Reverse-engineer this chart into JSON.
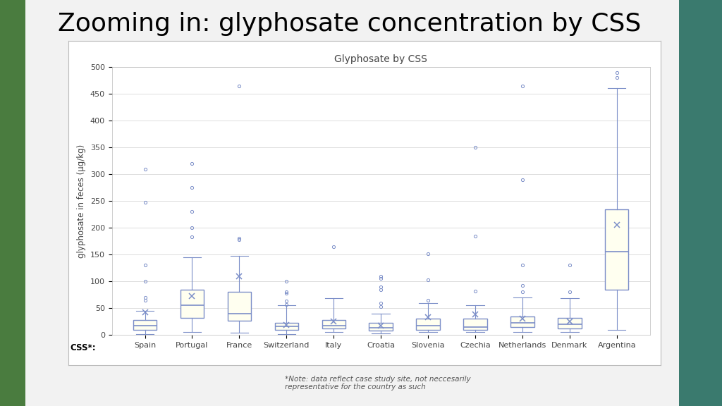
{
  "title_main": "Zooming in: glyphosate concentration by CSS",
  "title_sub": "Glyphosate by CSS",
  "ylabel": "glyphosate in feces (μg/kg)",
  "xlabel": "CSS*:",
  "ylim": [
    0,
    500
  ],
  "yticks": [
    0,
    50,
    100,
    150,
    200,
    250,
    300,
    350,
    400,
    450,
    500
  ],
  "panel_bg": "#f2f2f2",
  "chart_bg": "#ffffff",
  "box_fill": "#fffff0",
  "box_edge": "#7b8ec8",
  "whisker_color": "#7b8ec8",
  "flier_color": "#7b8ec8",
  "mean_color": "#7b8ec8",
  "median_color": "#7b8ec8",
  "grid_color": "#d8d8d8",
  "countries": [
    "Spain",
    "Portugal",
    "France",
    "Switzerland",
    "Italy",
    "Croatia",
    "Slovenia",
    "Czechia",
    "Netherlands",
    "Denmark",
    "Argentina"
  ],
  "boxes": {
    "Spain": {
      "q1": 10,
      "median": 18,
      "q3": 28,
      "whislo": 2,
      "whishi": 45,
      "mean": 42,
      "fliers": [
        65,
        70,
        100,
        130,
        248,
        310
      ]
    },
    "Portugal": {
      "q1": 32,
      "median": 55,
      "q3": 85,
      "whislo": 5,
      "whishi": 145,
      "mean": 72,
      "fliers": [
        183,
        200,
        230,
        275,
        320
      ]
    },
    "France": {
      "q1": 27,
      "median": 40,
      "q3": 80,
      "whislo": 4,
      "whishi": 148,
      "mean": 110,
      "fliers": [
        178,
        180,
        465
      ]
    },
    "Switzerland": {
      "q1": 10,
      "median": 16,
      "q3": 23,
      "whislo": 2,
      "whishi": 55,
      "mean": 19,
      "fliers": [
        57,
        63,
        78,
        80,
        100
      ]
    },
    "Italy": {
      "q1": 12,
      "median": 18,
      "q3": 28,
      "whislo": 5,
      "whishi": 68,
      "mean": 25,
      "fliers": [
        165
      ]
    },
    "Croatia": {
      "q1": 8,
      "median": 14,
      "q3": 22,
      "whislo": 3,
      "whishi": 40,
      "mean": 17,
      "fliers": [
        53,
        60,
        85,
        90,
        105,
        110
      ]
    },
    "Slovenia": {
      "q1": 10,
      "median": 17,
      "q3": 30,
      "whislo": 5,
      "whishi": 60,
      "mean": 33,
      "fliers": [
        65,
        103,
        152
      ]
    },
    "Czechia": {
      "q1": 10,
      "median": 15,
      "q3": 30,
      "whislo": 5,
      "whishi": 55,
      "mean": 38,
      "fliers": [
        82,
        185,
        350
      ]
    },
    "Netherlands": {
      "q1": 15,
      "median": 22,
      "q3": 35,
      "whislo": 5,
      "whishi": 70,
      "mean": 30,
      "fliers": [
        80,
        92,
        130,
        290,
        465
      ]
    },
    "Denmark": {
      "q1": 12,
      "median": 20,
      "q3": 32,
      "whislo": 5,
      "whishi": 68,
      "mean": 25,
      "fliers": [
        80,
        130
      ]
    },
    "Argentina": {
      "q1": 85,
      "median": 155,
      "q3": 235,
      "whislo": 10,
      "whishi": 460,
      "mean": 205,
      "fliers": [
        480,
        490
      ]
    }
  },
  "note": "*Note: data reflect case study site, not neccesarily\nrepresentative for the country as such",
  "title_fontsize": 26,
  "subtitle_fontsize": 10,
  "axis_label_fontsize": 8.5,
  "tick_fontsize": 8
}
